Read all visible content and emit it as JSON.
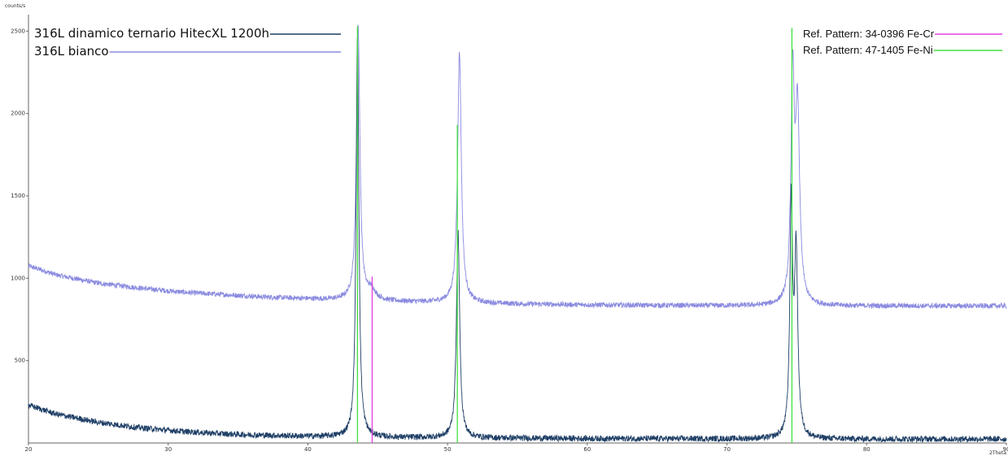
{
  "chart_data": {
    "type": "line",
    "ylabel": "counts/s",
    "xlabel": "2Theta",
    "xlim": [
      20,
      90
    ],
    "ylim": [
      0,
      2600
    ],
    "xticks": [
      20,
      30,
      40,
      50,
      60,
      70,
      80,
      90
    ],
    "yticks": [
      500,
      1000,
      1500,
      2000,
      2500
    ],
    "grid": false,
    "legend_left": [
      {
        "label": "316L dinamico ternario HitecXL 1200h",
        "color": "#1f3f66"
      },
      {
        "label": "316L bianco",
        "color": "#8a8ae0"
      }
    ],
    "legend_right": [
      {
        "label": "Ref. Pattern: 34-0396  Fe-Cr",
        "color": "#e040e0"
      },
      {
        "label": "Ref. Pattern: 47-1405  Fe-Ni",
        "color": "#40e040"
      }
    ],
    "series": [
      {
        "name": "316L dinamico ternario HitecXL 1200h",
        "color": "#1f3f66",
        "baseline": [
          [
            20,
            230
          ],
          [
            22,
            175
          ],
          [
            25,
            125
          ],
          [
            28,
            92
          ],
          [
            31,
            70
          ],
          [
            34,
            55
          ],
          [
            37,
            46
          ],
          [
            40,
            40
          ],
          [
            43,
            36
          ],
          [
            46,
            33
          ],
          [
            50,
            31
          ],
          [
            55,
            29
          ],
          [
            60,
            27
          ],
          [
            65,
            26
          ],
          [
            70,
            25
          ],
          [
            75,
            24
          ],
          [
            80,
            24
          ],
          [
            85,
            24
          ],
          [
            90,
            24
          ]
        ],
        "peaks": [
          {
            "x": 43.55,
            "height": 2450,
            "width": 0.12
          },
          {
            "x": 50.75,
            "height": 1250,
            "width": 0.14
          },
          {
            "x": 74.6,
            "height": 1380,
            "width": 0.12
          },
          {
            "x": 74.95,
            "height": 1100,
            "width": 0.14
          }
        ],
        "noise": 14
      },
      {
        "name": "316L bianco",
        "color": "#8a8ae0",
        "baseline": [
          [
            20,
            1075
          ],
          [
            22,
            1020
          ],
          [
            25,
            970
          ],
          [
            28,
            940
          ],
          [
            31,
            915
          ],
          [
            34,
            900
          ],
          [
            37,
            885
          ],
          [
            40,
            875
          ],
          [
            42,
            868
          ],
          [
            45,
            860
          ],
          [
            48,
            855
          ],
          [
            52,
            848
          ],
          [
            56,
            842
          ],
          [
            60,
            838
          ],
          [
            65,
            835
          ],
          [
            70,
            833
          ],
          [
            75,
            832
          ],
          [
            80,
            832
          ],
          [
            85,
            832
          ],
          [
            90,
            832
          ]
        ],
        "peaks": [
          {
            "x": 43.6,
            "height": 1660,
            "width": 0.15
          },
          {
            "x": 44.55,
            "height": 60,
            "width": 0.35
          },
          {
            "x": 50.85,
            "height": 1520,
            "width": 0.16
          },
          {
            "x": 74.7,
            "height": 1330,
            "width": 0.14
          },
          {
            "x": 75.05,
            "height": 1150,
            "width": 0.18
          }
        ],
        "noise": 12
      }
    ],
    "reference_sticks": [
      {
        "name": "Ref. Pattern: 34-0396  Fe-Cr",
        "color": "#e040e0",
        "x": [
          44.6
        ],
        "y": [
          1010
        ]
      },
      {
        "name": "Ref. Pattern: 47-1405  Fe-Ni",
        "color": "#40e040",
        "x": [
          43.55,
          50.7,
          74.65
        ],
        "y": [
          2530,
          1930,
          2520
        ]
      }
    ]
  }
}
